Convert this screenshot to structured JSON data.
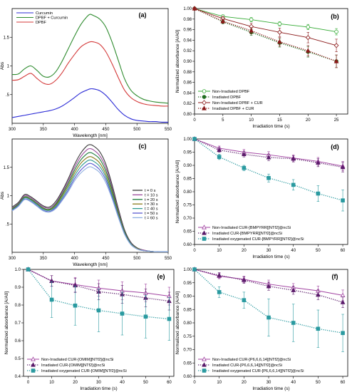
{
  "chart_data": [
    {
      "panel": "(a)",
      "type": "line",
      "xlabel": "Wavelength [nm]",
      "ylabel": "Abs",
      "xlim": [
        300,
        550
      ],
      "ylim": [
        0,
        2.0
      ],
      "xticks": [
        300,
        350,
        400,
        450,
        500,
        550
      ],
      "yticks": [
        0.5,
        1,
        1.5
      ],
      "ytick_labels": [
        ".5",
        "1",
        "1.5"
      ],
      "legend_position": "top-left",
      "x": [
        300,
        310,
        320,
        330,
        340,
        350,
        360,
        370,
        380,
        390,
        400,
        410,
        420,
        425,
        430,
        440,
        450,
        460,
        470,
        480,
        490,
        500,
        510,
        520,
        530,
        540,
        550
      ],
      "series": [
        {
          "name": "Curcumin",
          "color": "#2b2bd6",
          "values": [
            0.1,
            0.12,
            0.14,
            0.16,
            0.18,
            0.2,
            0.22,
            0.25,
            0.3,
            0.37,
            0.45,
            0.53,
            0.58,
            0.6,
            0.6,
            0.57,
            0.49,
            0.37,
            0.24,
            0.14,
            0.08,
            0.05,
            0.04,
            0.03,
            0.03,
            0.02,
            0.02
          ]
        },
        {
          "name": "DPBF + Curcumin",
          "color": "#2e8b2e",
          "values": [
            0.85,
            0.86,
            0.95,
            1.0,
            0.92,
            0.82,
            0.81,
            0.9,
            1.08,
            1.3,
            1.52,
            1.72,
            1.86,
            1.9,
            1.88,
            1.82,
            1.68,
            1.42,
            1.1,
            0.78,
            0.58,
            0.48,
            0.42,
            0.39,
            0.37,
            0.36,
            0.35
          ]
        },
        {
          "name": "DPBF",
          "color": "#d43a3a",
          "values": [
            0.75,
            0.76,
            0.82,
            0.87,
            0.78,
            0.7,
            0.68,
            0.75,
            0.88,
            1.05,
            1.2,
            1.33,
            1.4,
            1.42,
            1.42,
            1.38,
            1.25,
            1.04,
            0.8,
            0.58,
            0.45,
            0.38,
            0.34,
            0.32,
            0.31,
            0.3,
            0.3
          ]
        }
      ]
    },
    {
      "panel": "(b)",
      "type": "line",
      "xlabel": "Irradiation time (s)",
      "ylabel": "Normalized absorbance [A/A0]",
      "xlim": [
        0,
        27
      ],
      "ylim": [
        0.8,
        1.0
      ],
      "xticks": [
        0,
        5,
        10,
        15,
        20,
        25
      ],
      "yticks": [
        0.8,
        0.82,
        0.84,
        0.86,
        0.88,
        0.9,
        0.92,
        0.94,
        0.96,
        0.98,
        1.0
      ],
      "legend_position": "bottom-left",
      "x": [
        0,
        5,
        10,
        15,
        20,
        25
      ],
      "series": [
        {
          "name": "Non-Irradiated DPBF",
          "color": "#33aa33",
          "dash": "solid",
          "marker": "circle",
          "filled": false,
          "values": [
            1.0,
            0.985,
            0.979,
            0.971,
            0.965,
            0.956
          ],
          "errors": [
            0,
            0.003,
            0.004,
            0.004,
            0.005,
            0.006
          ]
        },
        {
          "name": "Irradiated DPBF",
          "color": "#1f6e1f",
          "dash": "dotted",
          "marker": "circle",
          "filled": true,
          "values": [
            1.0,
            0.975,
            0.955,
            0.935,
            0.918,
            0.9
          ],
          "errors": [
            0,
            0.004,
            0.006,
            0.008,
            0.01,
            0.012
          ]
        },
        {
          "name": "Non-Irradiated DPBF + CUR",
          "color": "#8b1a1a",
          "dash": "solid",
          "marker": "diamond",
          "filled": false,
          "values": [
            1.0,
            0.981,
            0.966,
            0.955,
            0.945,
            0.93
          ],
          "errors": [
            0,
            0.004,
            0.006,
            0.008,
            0.01,
            0.012
          ]
        },
        {
          "name": "Irradiated DPBF + CUR",
          "color": "#8b1a1a",
          "dash": "dotted",
          "marker": "triangle",
          "filled": true,
          "values": [
            1.0,
            0.976,
            0.958,
            0.937,
            0.92,
            0.9
          ],
          "errors": [
            0,
            0.004,
            0.006,
            0.008,
            0.01,
            0.012
          ]
        }
      ]
    },
    {
      "panel": "(c)",
      "type": "line",
      "xlabel": "Wavelength [nm]",
      "ylabel": "Abs",
      "xlim": [
        300,
        550
      ],
      "ylim": [
        0,
        2.0
      ],
      "xticks": [
        300,
        350,
        400,
        450,
        500,
        550
      ],
      "yticks": [
        0.5,
        1,
        1.5
      ],
      "ytick_labels": [
        ".5",
        "1",
        "1.5"
      ],
      "legend_position": "right",
      "x": [
        300,
        310,
        320,
        330,
        340,
        350,
        360,
        370,
        380,
        390,
        400,
        410,
        420,
        425,
        430,
        440,
        450,
        460,
        470,
        480,
        490,
        500,
        510,
        520,
        530,
        540,
        550
      ],
      "series": [
        {
          "name": "t = 0 s",
          "color": "#3a3a3a",
          "values": [
            0.8,
            0.88,
            1.02,
            0.98,
            0.9,
            0.82,
            0.8,
            0.9,
            1.08,
            1.3,
            1.55,
            1.75,
            1.88,
            1.9,
            1.88,
            1.78,
            1.56,
            1.2,
            0.78,
            0.4,
            0.18,
            0.08,
            0.04,
            0.02,
            0.01,
            0.01,
            0.01
          ]
        },
        {
          "name": "t = 10 s",
          "color": "#9a4a9a",
          "values": [
            0.78,
            0.86,
            1.0,
            0.96,
            0.88,
            0.8,
            0.78,
            0.87,
            1.05,
            1.26,
            1.5,
            1.69,
            1.81,
            1.83,
            1.81,
            1.71,
            1.5,
            1.15,
            0.75,
            0.38,
            0.17,
            0.07,
            0.04,
            0.02,
            0.01,
            0.01,
            0.01
          ]
        },
        {
          "name": "t = 20 s",
          "color": "#1b7a3a",
          "values": [
            0.77,
            0.85,
            0.98,
            0.94,
            0.86,
            0.78,
            0.76,
            0.85,
            1.02,
            1.22,
            1.45,
            1.63,
            1.74,
            1.76,
            1.74,
            1.65,
            1.44,
            1.11,
            0.72,
            0.37,
            0.16,
            0.07,
            0.03,
            0.02,
            0.01,
            0.01,
            0.01
          ]
        },
        {
          "name": "t = 30 s",
          "color": "#8a7a1a",
          "values": [
            0.76,
            0.84,
            0.97,
            0.93,
            0.85,
            0.77,
            0.75,
            0.83,
            0.99,
            1.18,
            1.4,
            1.57,
            1.67,
            1.69,
            1.67,
            1.58,
            1.38,
            1.06,
            0.69,
            0.35,
            0.15,
            0.07,
            0.03,
            0.02,
            0.01,
            0.01,
            0.01
          ]
        },
        {
          "name": "t = 40 s",
          "color": "#2f9a8f",
          "values": [
            0.75,
            0.83,
            0.96,
            0.92,
            0.84,
            0.76,
            0.74,
            0.81,
            0.96,
            1.14,
            1.35,
            1.51,
            1.61,
            1.63,
            1.61,
            1.52,
            1.33,
            1.02,
            0.66,
            0.34,
            0.15,
            0.06,
            0.03,
            0.02,
            0.01,
            0.01,
            0.01
          ]
        },
        {
          "name": "t = 50 s",
          "color": "#5a5ad0",
          "values": [
            0.74,
            0.82,
            0.94,
            0.9,
            0.82,
            0.74,
            0.72,
            0.79,
            0.93,
            1.1,
            1.3,
            1.45,
            1.55,
            1.57,
            1.55,
            1.46,
            1.28,
            0.98,
            0.64,
            0.33,
            0.14,
            0.06,
            0.03,
            0.02,
            0.01,
            0.01,
            0.01
          ]
        },
        {
          "name": "t = 60 s",
          "color": "#8fb0e0",
          "values": [
            0.73,
            0.81,
            0.93,
            0.89,
            0.81,
            0.73,
            0.71,
            0.77,
            0.91,
            1.07,
            1.26,
            1.4,
            1.49,
            1.51,
            1.49,
            1.41,
            1.23,
            0.95,
            0.62,
            0.32,
            0.14,
            0.06,
            0.03,
            0.02,
            0.01,
            0.01,
            0.01
          ]
        }
      ]
    },
    {
      "panel": "(d)",
      "type": "line",
      "xlabel": "Irradiation time (s)",
      "ylabel": "Normalized absorbance [A/A0]",
      "xlim": [
        0,
        62
      ],
      "ylim": [
        0.6,
        1.0
      ],
      "xticks": [
        0,
        10,
        20,
        30,
        40,
        50,
        60
      ],
      "yticks": [
        0.6,
        0.65,
        0.7,
        0.75,
        0.8,
        0.85,
        0.9,
        0.95,
        1.0
      ],
      "legend_position": "bottom-left",
      "x": [
        0,
        10,
        20,
        30,
        40,
        50,
        60
      ],
      "series": [
        {
          "name": "Non-Irradiated CUR-[BMPYRR][NTf2]@ncSi",
          "color": "#a040a0",
          "dash": "solid",
          "marker": "triangle",
          "filled": false,
          "values": [
            1.0,
            0.965,
            0.95,
            0.94,
            0.928,
            0.915,
            0.897
          ],
          "errors": [
            0,
            0.008,
            0.01,
            0.012,
            0.012,
            0.015,
            0.018
          ]
        },
        {
          "name": "Irradiated CUR-[BMPYRR][NTf2]@ncSi",
          "color": "#5a1a6a",
          "dash": "dotted",
          "marker": "triangle",
          "filled": true,
          "values": [
            1.0,
            0.958,
            0.942,
            0.93,
            0.925,
            0.91,
            0.893
          ],
          "errors": [
            0,
            0.008,
            0.01,
            0.012,
            0.012,
            0.015,
            0.018
          ]
        },
        {
          "name": "Irradiated oxygenated CUR-[BMPYRR][NTf2]@ncSi",
          "color": "#2a9aa0",
          "dash": "dotted",
          "marker": "square",
          "filled": true,
          "values": [
            1.0,
            0.932,
            0.89,
            0.852,
            0.826,
            0.793,
            0.767
          ],
          "errors": [
            0,
            0.01,
            0.01,
            0.015,
            0.02,
            0.03,
            0.04
          ]
        }
      ]
    },
    {
      "panel": "(e)",
      "type": "line",
      "xlabel": "Irradiation time (s)",
      "ylabel": "Normalized absorbance [A/A0]",
      "xlim": [
        -2,
        62
      ],
      "ylim": [
        0.4,
        1.0
      ],
      "xticks": [
        0,
        10,
        20,
        30,
        40,
        50,
        60
      ],
      "yticks": [
        0.4,
        0.5,
        0.6,
        0.7,
        0.8,
        0.9,
        1.0
      ],
      "legend_position": "bottom-left",
      "x": [
        0,
        10,
        20,
        30,
        40,
        50,
        60
      ],
      "series": [
        {
          "name": "Non-Irradiated CUR-[OMIM][NTf2]@ncSi",
          "color": "#a040a0",
          "dash": "solid",
          "marker": "triangle",
          "filled": false,
          "values": [
            1.0,
            0.935,
            0.915,
            0.895,
            0.88,
            0.868,
            0.85
          ],
          "errors": [
            0,
            0.03,
            0.04,
            0.045,
            0.05,
            0.05,
            0.05
          ]
        },
        {
          "name": "Irradiated CUR-[OMIM][NTf2]@ncSi",
          "color": "#5a1a6a",
          "dash": "dotted",
          "marker": "triangle",
          "filled": true,
          "values": [
            1.0,
            0.935,
            0.91,
            0.875,
            0.86,
            0.84,
            0.822
          ],
          "errors": [
            0,
            0.03,
            0.04,
            0.045,
            0.05,
            0.05,
            0.05
          ]
        },
        {
          "name": "Irradiated oxygenated CUR-[OMIM][NTf2]@ncSi",
          "color": "#2a9aa0",
          "dash": "dotted",
          "marker": "square",
          "filled": true,
          "values": [
            1.0,
            0.83,
            0.797,
            0.77,
            0.752,
            0.735,
            0.722
          ],
          "errors": [
            0,
            0.1,
            0.11,
            0.12,
            0.12,
            0.12,
            0.12
          ]
        }
      ]
    },
    {
      "panel": "(f)",
      "type": "line",
      "xlabel": "Irradiation time (s)",
      "ylabel": "Normalized absorbance [A/A0]",
      "xlim": [
        0,
        62
      ],
      "ylim": [
        0.6,
        1.0
      ],
      "xticks": [
        0,
        10,
        20,
        30,
        40,
        50,
        60
      ],
      "yticks": [
        0.6,
        0.65,
        0.7,
        0.75,
        0.8,
        0.85,
        0.9,
        0.95,
        1.0
      ],
      "legend_position": "bottom-left",
      "x": [
        0,
        10,
        20,
        30,
        40,
        50,
        60
      ],
      "series": [
        {
          "name": "Non-Irradiated CUR-[P6,6,6,14][NTf2]@ncSi",
          "color": "#a040a0",
          "dash": "solid",
          "marker": "triangle",
          "filled": false,
          "values": [
            1.0,
            0.975,
            0.963,
            0.945,
            0.932,
            0.92,
            0.903
          ],
          "errors": [
            0,
            0.01,
            0.012,
            0.015,
            0.015,
            0.018,
            0.02
          ]
        },
        {
          "name": "Irradiated CUR-[P6,6,6,14][NTf2]@ncSi",
          "color": "#5a1a6a",
          "dash": "dotted",
          "marker": "triangle",
          "filled": true,
          "values": [
            1.0,
            0.978,
            0.96,
            0.937,
            0.922,
            0.905,
            0.877
          ],
          "errors": [
            0,
            0.01,
            0.012,
            0.015,
            0.015,
            0.018,
            0.02
          ]
        },
        {
          "name": "Irradiated oxygenated CUR-[P6,6,6,14][NTf2]@ncSi",
          "color": "#2a9aa0",
          "dash": "dotted",
          "marker": "square",
          "filled": true,
          "values": [
            1.0,
            0.915,
            0.885,
            0.82,
            0.8,
            0.778,
            0.762
          ],
          "errors": [
            0,
            0.02,
            0.03,
            0.07,
            0.07,
            0.07,
            0.07
          ]
        }
      ]
    }
  ]
}
